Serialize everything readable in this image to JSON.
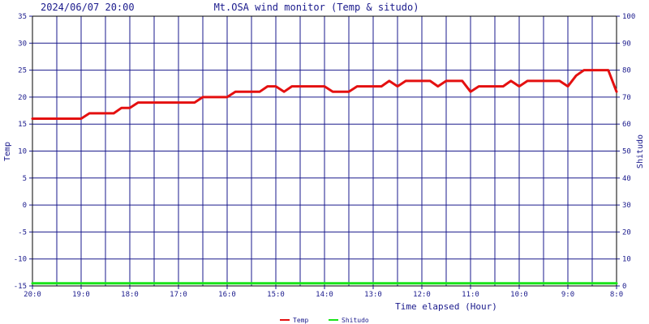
{
  "header": {
    "timestamp": "2024/06/07 20:00",
    "title": "Mt.OSA wind monitor (Temp & situdo)"
  },
  "chart_data": {
    "type": "line",
    "title": "Mt.OSA wind monitor (Temp & situdo)",
    "xlabel": "Time elapsed (Hour)",
    "ylabel_left": "Temp",
    "ylabel_right": "Shitudo",
    "ylim_left": [
      -15,
      35
    ],
    "ylim_right": [
      0,
      100
    ],
    "yticks_left": [
      "35",
      "30",
      "25",
      "20",
      "15",
      "10",
      "5",
      "0",
      "-5",
      "-10",
      "-15"
    ],
    "yticks_right": [
      "100",
      "90",
      "80",
      "70",
      "60",
      "50",
      "40",
      "30",
      "20",
      "10",
      "0"
    ],
    "xticks": [
      "20:0",
      "19:0",
      "18:0",
      "17:0",
      "16:0",
      "15:0",
      "14:0",
      "13:0",
      "12:0",
      "11:0",
      "10:0",
      "9:0",
      "8:0"
    ],
    "x_hours_before": [
      12,
      11.83,
      11.67,
      11.5,
      11.33,
      11.17,
      11,
      10.83,
      10.67,
      10.5,
      10.33,
      10.17,
      10,
      9.83,
      9.67,
      9.5,
      9.33,
      9.17,
      9,
      8.83,
      8.67,
      8.5,
      8.33,
      8.17,
      8,
      7.83,
      7.67,
      7.5,
      7.33,
      7.17,
      7,
      6.83,
      6.67,
      6.5,
      6.33,
      6.17,
      6,
      5.83,
      5.67,
      5.5,
      5.33,
      5.17,
      5,
      4.83,
      4.67,
      4.5,
      4.33,
      4.17,
      4,
      3.83,
      3.67,
      3.5,
      3.33,
      3.17,
      3,
      2.83,
      2.67,
      2.5,
      2.33,
      2.17,
      2,
      1.83,
      1.67,
      1.5,
      1.33,
      1.17,
      1,
      0.83,
      0.67,
      0.5,
      0.33,
      0.17,
      0
    ],
    "grid": true,
    "legend_position": "bottom",
    "series": [
      {
        "name": "Temp",
        "axis": "left",
        "color": "#e41010",
        "values": [
          16,
          16,
          16,
          16,
          16,
          16,
          16,
          17,
          17,
          17,
          17,
          18,
          18,
          19,
          19,
          19,
          19,
          19,
          19,
          19,
          19,
          20,
          20,
          20,
          20,
          21,
          21,
          21,
          21,
          22,
          22,
          21,
          22,
          22,
          22,
          22,
          22,
          21,
          21,
          21,
          22,
          22,
          22,
          22,
          23,
          22,
          23,
          23,
          23,
          23,
          22,
          23,
          23,
          23,
          21,
          22,
          22,
          22,
          22,
          23,
          22,
          23,
          23,
          23,
          23,
          23,
          22,
          24,
          25,
          25,
          25,
          25,
          21
        ]
      },
      {
        "name": "Shitudo",
        "axis": "right",
        "color": "#18e418",
        "values": [
          1,
          1,
          1,
          1,
          1,
          1,
          1,
          1,
          1,
          1,
          1,
          1,
          1,
          1,
          1,
          1,
          1,
          1,
          1,
          1,
          1,
          1,
          1,
          1,
          1,
          1,
          1,
          1,
          1,
          1,
          1,
          1,
          1,
          1,
          1,
          1,
          1,
          1,
          1,
          1,
          1,
          1,
          1,
          1,
          1,
          1,
          1,
          1,
          1,
          1,
          1,
          1,
          1,
          1,
          1,
          1,
          1,
          1,
          1,
          1,
          1,
          1,
          1,
          1,
          1,
          1,
          1,
          1,
          1,
          1,
          1,
          1,
          1
        ]
      }
    ]
  }
}
